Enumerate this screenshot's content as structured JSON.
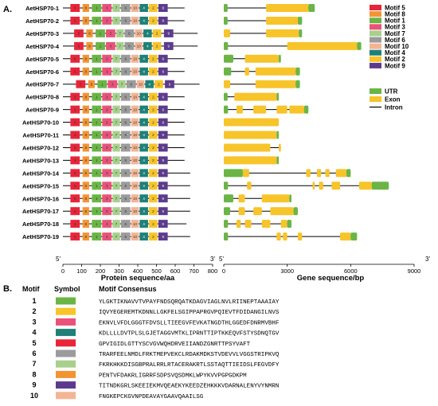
{
  "panel_a": {
    "label": "A.",
    "genes": [
      "AetHSP70-1",
      "AetHSP70-2",
      "AetHSP70-3",
      "AetHSP70-4",
      "AetHSP70-5",
      "AetHSP70-6",
      "AetHSP70-7",
      "AetHSP70-8",
      "AetHSP70-9",
      "AetHSP70-10",
      "AetHSP70-11",
      "AetHSP70-12",
      "AetHSP70-13",
      "AetHSP70-14",
      "AetHSP70-15",
      "AetHSP70-16",
      "AetHSP70-17",
      "AetHSP70-18",
      "AetHSP70-19"
    ],
    "protein_axis": {
      "label": "Protein sequence/aa",
      "ticks": [
        0,
        100,
        200,
        300,
        400,
        500,
        600,
        700,
        800
      ],
      "end5": "5'",
      "end3": "3'"
    },
    "gene_axis": {
      "label": "Gene sequence/bp",
      "ticks": [
        0,
        3000,
        6000,
        9000
      ],
      "end5": "5'",
      "end3": "3'"
    },
    "protein_lengths": [
      650,
      650,
      720,
      720,
      650,
      650,
      730,
      650,
      650,
      650,
      650,
      650,
      650,
      680,
      680,
      680,
      680,
      660,
      680
    ],
    "motif_order": [
      "5",
      "8",
      "1",
      "3",
      "7",
      "6",
      "10",
      "4",
      "2",
      "9"
    ],
    "motif_starts": {
      "5": [
        40,
        40,
        60,
        60,
        40,
        40,
        70,
        40,
        40,
        40,
        40,
        40,
        40,
        40,
        40,
        40,
        40,
        40,
        40
      ],
      "8": [
        105,
        105,
        125,
        125,
        105,
        105,
        135,
        105,
        105,
        105,
        105,
        105,
        105,
        105,
        105,
        105,
        105,
        105,
        105
      ],
      "1": [
        155,
        155,
        175,
        175,
        155,
        155,
        185,
        155,
        155,
        155,
        155,
        155,
        155,
        155,
        155,
        155,
        155,
        155,
        155
      ],
      "3": [
        210,
        210,
        230,
        230,
        210,
        210,
        240,
        210,
        210,
        210,
        210,
        210,
        210,
        210,
        210,
        210,
        210,
        210,
        210
      ],
      "7": [
        265,
        265,
        285,
        285,
        265,
        265,
        295,
        265,
        265,
        265,
        265,
        265,
        265,
        265,
        265,
        265,
        265,
        265,
        265
      ],
      "6": [
        310,
        310,
        330,
        330,
        310,
        310,
        340,
        310,
        310,
        310,
        310,
        310,
        310,
        310,
        310,
        310,
        310,
        310,
        310
      ],
      "10": [
        365,
        365,
        385,
        385,
        365,
        365,
        395,
        365,
        365,
        365,
        365,
        365,
        365,
        365,
        365,
        365,
        365,
        365,
        365
      ],
      "4": [
        410,
        410,
        430,
        430,
        410,
        410,
        440,
        410,
        410,
        410,
        410,
        410,
        410,
        410,
        410,
        410,
        410,
        410,
        410
      ],
      "2": [
        460,
        460,
        480,
        480,
        460,
        460,
        490,
        460,
        460,
        460,
        460,
        460,
        460,
        460,
        460,
        460,
        460,
        460,
        460
      ],
      "9": [
        510,
        510,
        540,
        540,
        510,
        510,
        545,
        510,
        510,
        510,
        510,
        510,
        510,
        510,
        510,
        510,
        510,
        510,
        510
      ]
    },
    "motif_lengths": {
      "5": 50,
      "8": 35,
      "1": 50,
      "3": 50,
      "7": 40,
      "6": 50,
      "10": 40,
      "4": 45,
      "2": 45,
      "9": 50
    },
    "motif_inner_labels": {
      "5": "5",
      "8": "8",
      "1": "1",
      "3": "3",
      "7": "7",
      "6": "6",
      "10": "10",
      "4": "4",
      "2": "2",
      "9": "9"
    },
    "gene_lengths": [
      4300,
      3700,
      3700,
      6500,
      2700,
      3600,
      3600,
      2600,
      4000,
      2600,
      2600,
      2700,
      2600,
      6000,
      7800,
      3200,
      3500,
      3200,
      6300
    ],
    "gene_features": [
      [
        {
          "type": "utr",
          "start": 0,
          "end": 180
        },
        {
          "type": "exon",
          "start": 2000,
          "end": 4000
        },
        {
          "type": "utr",
          "start": 4000,
          "end": 4300
        }
      ],
      [
        {
          "type": "utr",
          "start": 0,
          "end": 180
        },
        {
          "type": "exon",
          "start": 2000,
          "end": 3500
        },
        {
          "type": "utr",
          "start": 3500,
          "end": 3700
        }
      ],
      [
        {
          "type": "exon",
          "start": 0,
          "end": 300
        },
        {
          "type": "exon",
          "start": 2000,
          "end": 3550
        },
        {
          "type": "utr",
          "start": 3550,
          "end": 3700
        }
      ],
      [
        {
          "type": "utr",
          "start": 0,
          "end": 200
        },
        {
          "type": "exon",
          "start": 3000,
          "end": 6300
        },
        {
          "type": "utr",
          "start": 6300,
          "end": 6500
        }
      ],
      [
        {
          "type": "utr",
          "start": 0,
          "end": 450
        },
        {
          "type": "exon",
          "start": 1000,
          "end": 2600
        },
        {
          "type": "utr",
          "start": 2600,
          "end": 2700
        }
      ],
      [
        {
          "type": "utr",
          "start": 0,
          "end": 350
        },
        {
          "type": "exon",
          "start": 1000,
          "end": 1200
        },
        {
          "type": "exon",
          "start": 1500,
          "end": 3400
        },
        {
          "type": "utr",
          "start": 3400,
          "end": 3600
        }
      ],
      [
        {
          "type": "exon",
          "start": 0,
          "end": 300
        },
        {
          "type": "exon",
          "start": 1500,
          "end": 3400
        },
        {
          "type": "utr",
          "start": 3400,
          "end": 3600
        }
      ],
      [
        {
          "type": "utr",
          "start": 0,
          "end": 180
        },
        {
          "type": "exon",
          "start": 500,
          "end": 2500
        },
        {
          "type": "utr",
          "start": 2500,
          "end": 2600
        }
      ],
      [
        {
          "type": "utr",
          "start": 0,
          "end": 200
        },
        {
          "type": "exon",
          "start": 600,
          "end": 900
        },
        {
          "type": "exon",
          "start": 1400,
          "end": 2000
        },
        {
          "type": "exon",
          "start": 2500,
          "end": 3000
        },
        {
          "type": "exon",
          "start": 3100,
          "end": 3800
        },
        {
          "type": "utr",
          "start": 3800,
          "end": 4000
        }
      ],
      [
        {
          "type": "exon",
          "start": 0,
          "end": 2600
        }
      ],
      [
        {
          "type": "exon",
          "start": 0,
          "end": 2500
        },
        {
          "type": "utr",
          "start": 2500,
          "end": 2600
        }
      ],
      [
        {
          "type": "exon",
          "start": 0,
          "end": 2200
        },
        {
          "type": "exon",
          "start": 2600,
          "end": 2700
        }
      ],
      [
        {
          "type": "exon",
          "start": 0,
          "end": 2500
        },
        {
          "type": "utr",
          "start": 2500,
          "end": 2600
        }
      ],
      [
        {
          "type": "utr",
          "start": 0,
          "end": 900
        },
        {
          "type": "exon",
          "start": 900,
          "end": 1200
        },
        {
          "type": "exon",
          "start": 3900,
          "end": 4100
        },
        {
          "type": "exon",
          "start": 4400,
          "end": 4600
        },
        {
          "type": "exon",
          "start": 4800,
          "end": 5000
        },
        {
          "type": "exon",
          "start": 5300,
          "end": 5800
        },
        {
          "type": "utr",
          "start": 5800,
          "end": 6000
        }
      ],
      [
        {
          "type": "utr",
          "start": 0,
          "end": 200
        },
        {
          "type": "exon",
          "start": 1100,
          "end": 1300
        },
        {
          "type": "exon",
          "start": 4200,
          "end": 4300
        },
        {
          "type": "exon",
          "start": 4500,
          "end": 4700
        },
        {
          "type": "exon",
          "start": 5100,
          "end": 5500
        },
        {
          "type": "exon",
          "start": 6400,
          "end": 7000
        },
        {
          "type": "utr",
          "start": 7000,
          "end": 7800
        }
      ],
      [
        {
          "type": "utr",
          "start": 0,
          "end": 450
        },
        {
          "type": "exon",
          "start": 700,
          "end": 1000
        },
        {
          "type": "exon",
          "start": 1800,
          "end": 3100
        },
        {
          "type": "utr",
          "start": 3100,
          "end": 3200
        }
      ],
      [
        {
          "type": "utr",
          "start": 0,
          "end": 300
        },
        {
          "type": "exon",
          "start": 700,
          "end": 1000
        },
        {
          "type": "exon",
          "start": 1400,
          "end": 1800
        },
        {
          "type": "exon",
          "start": 2200,
          "end": 3300
        },
        {
          "type": "utr",
          "start": 3300,
          "end": 3500
        }
      ],
      [
        {
          "type": "utr",
          "start": 0,
          "end": 200
        },
        {
          "type": "exon",
          "start": 600,
          "end": 800
        },
        {
          "type": "exon",
          "start": 1000,
          "end": 1300
        },
        {
          "type": "exon",
          "start": 1800,
          "end": 2200
        },
        {
          "type": "exon",
          "start": 2700,
          "end": 3000
        },
        {
          "type": "utr",
          "start": 3000,
          "end": 3200
        }
      ],
      [
        {
          "type": "utr",
          "start": 0,
          "end": 200
        },
        {
          "type": "exon",
          "start": 2500,
          "end": 2700
        },
        {
          "type": "exon",
          "start": 2800,
          "end": 3000
        },
        {
          "type": "exon",
          "start": 3500,
          "end": 3700
        },
        {
          "type": "exon",
          "start": 5500,
          "end": 6000
        },
        {
          "type": "utr",
          "start": 6000,
          "end": 6300
        }
      ]
    ],
    "legend_motifs": [
      {
        "id": "5",
        "label": "Motif 5",
        "color": "#e8253a"
      },
      {
        "id": "8",
        "label": "Motif 8",
        "color": "#f39433"
      },
      {
        "id": "1",
        "label": "Motif 1",
        "color": "#6ab545"
      },
      {
        "id": "3",
        "label": "Motif 3",
        "color": "#e9527a"
      },
      {
        "id": "7",
        "label": "Motif 7",
        "color": "#a8d08d"
      },
      {
        "id": "6",
        "label": "Motif 6",
        "color": "#9b9b9b"
      },
      {
        "id": "10",
        "label": "Motif 10",
        "color": "#f4b494"
      },
      {
        "id": "4",
        "label": "Motif 4",
        "color": "#1f8078"
      },
      {
        "id": "2",
        "label": "Motif 2",
        "color": "#f7c42a"
      },
      {
        "id": "9",
        "label": "Motif 9",
        "color": "#5c3b8d"
      }
    ],
    "legend_structure": [
      {
        "type": "utr",
        "label": "UTR",
        "color": "#6ab545"
      },
      {
        "type": "exon",
        "label": "Exon",
        "color": "#f7c42a"
      },
      {
        "type": "intron",
        "label": "Intron",
        "color": "#000000"
      }
    ]
  },
  "panel_b": {
    "label": "B.",
    "headers": {
      "motif": "Motif",
      "symbol": "Symbol",
      "consensus": "Motif Consensus"
    },
    "rows": [
      {
        "motif": "1",
        "color": "#6ab545",
        "consensus": "YLGKTIKNAVVTVPAYFNDSQRQATKDAGVIAGLNVLRIINEPTAAAIAY"
      },
      {
        "motif": "2",
        "color": "#f7c42a",
        "consensus": "IQVYEGEREMTKDNNLLGKFELSGIPPAPRGVPQIEVTFDIDANGILNVS"
      },
      {
        "motif": "3",
        "color": "#e9527a",
        "consensus": "EKNVLVFDLGGGTFDVSLLTIEEGVFEVKATNGDTHLGGEDFDNRMVBHF"
      },
      {
        "motif": "4",
        "color": "#1f8078",
        "consensus": "KDLLLLDVTPLSLGJETAGGVMTKLIPRNTTIPTKKEQVFSTYSDNQTGV"
      },
      {
        "motif": "5",
        "color": "#e8253a",
        "consensus": "GPVIGIDLGTTYSCVGVWQHDRVEIIANDZGNRTTPSYVAFT"
      },
      {
        "motif": "6",
        "color": "#9b9b9b",
        "consensus": "TRARFEELNMDLFRKTMEPVEKCLRDAKMDKSTVDEVVLVGGSTRIPKVQ"
      },
      {
        "motif": "7",
        "color": "#a8d08d",
        "consensus": "FKRKHKKDISGBPRALRRLRTACERAKRTLSSTAQTTIEIDSLFEGVDFY"
      },
      {
        "motif": "8",
        "color": "#f39433",
        "consensus": "PENTVFDAKRLIGRRFSDPSVQSDMKLWPYKVVPGPGDKPM"
      },
      {
        "motif": "9",
        "color": "#5c3b8d",
        "consensus": "TITNDKGRLSKEEIEKMVQEAEKYKEEDZEHKKKVDARNALENYVYNMRN"
      },
      {
        "motif": "10",
        "color": "#f4b494",
        "consensus": "FNGKEPCKGVNPDEAVAYGAAVQAAILSG"
      }
    ]
  }
}
